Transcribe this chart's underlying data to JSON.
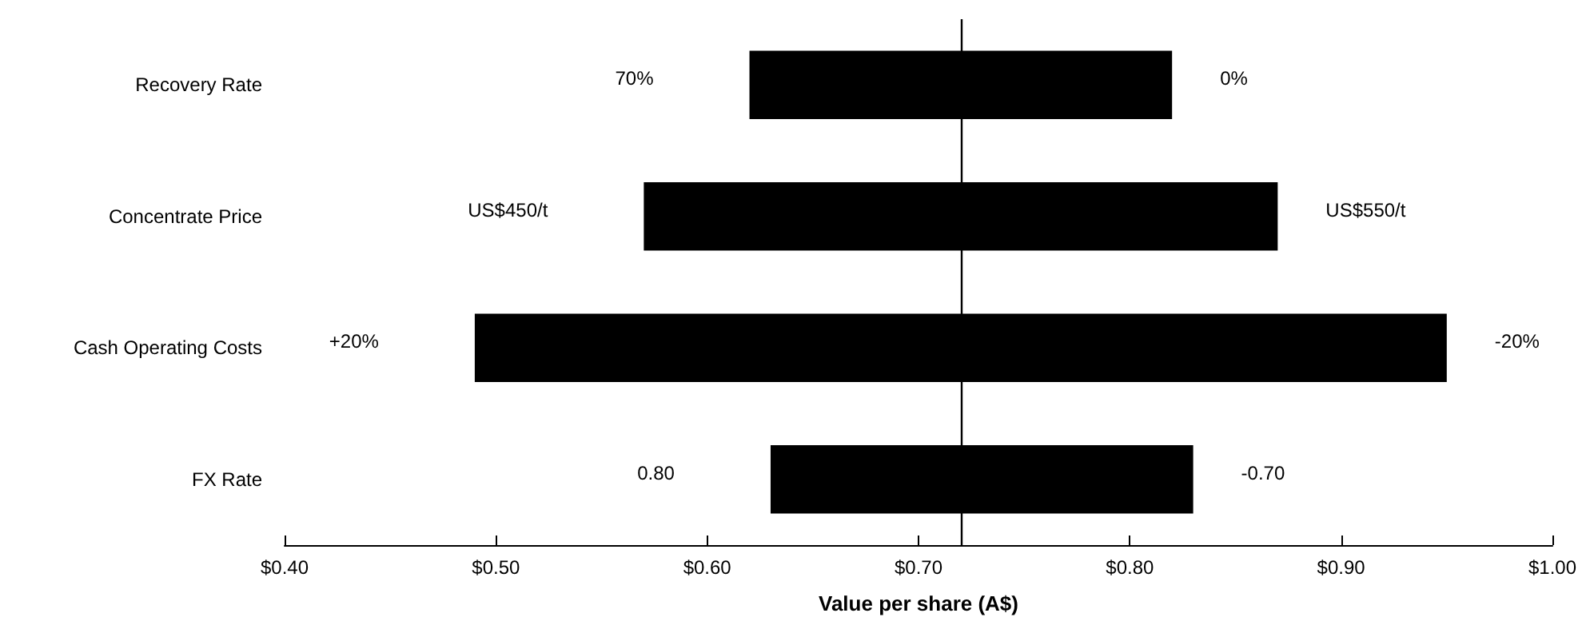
{
  "chart_data": {
    "type": "bar",
    "orientation": "horizontal",
    "xlabel": "Value per share (A$)",
    "categories": [
      "Recovery Rate",
      "Concentrate Price",
      "Cash Operating Costs",
      "FX Rate"
    ],
    "base": [
      0.62,
      0.57,
      0.49,
      0.63
    ],
    "values": [
      0.2,
      0.3,
      0.46,
      0.2
    ],
    "color": "#000000",
    "xlim": [
      0.4,
      1.0
    ],
    "xticks": [
      {
        "value": 0.4,
        "label": "$0.40"
      },
      {
        "value": 0.5,
        "label": "$0.50"
      },
      {
        "value": 0.6,
        "label": "$0.60"
      },
      {
        "value": 0.7,
        "label": "$0.70"
      },
      {
        "value": 0.8,
        "label": "$0.80"
      },
      {
        "value": 0.9,
        "label": "$0.90"
      },
      {
        "value": 1.0,
        "label": "$1.00"
      }
    ],
    "ref_lines": [
      {
        "axis": "x",
        "value": 0.72
      }
    ],
    "annotations": [
      "70%",
      "0%",
      "US$450/t",
      "US$550/t",
      "+20%",
      "-20%",
      "0.80",
      "-0.70"
    ],
    "grid": false
  }
}
